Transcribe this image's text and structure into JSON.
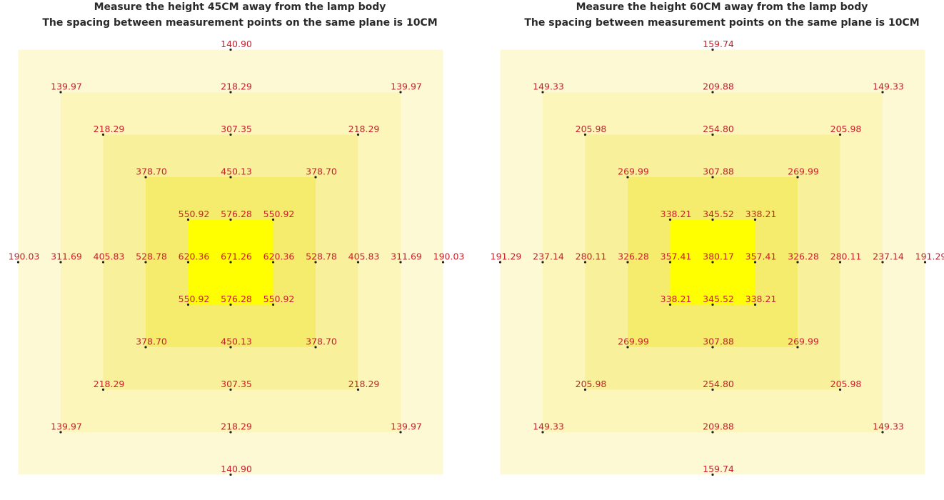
{
  "panels": [
    {
      "title": [
        "Measure the height 45CM away from the lamp body",
        "The spacing between measurement points on the same plane is 10CM"
      ],
      "points": [
        "190.03",
        "311.69",
        "405.83",
        "528.78",
        "620.36",
        "671.26",
        "620.36",
        "528.78",
        "405.83",
        "311.69",
        "190.03",
        "140.90",
        "218.29",
        "307.35",
        "450.13",
        "576.28",
        "576.28",
        "450.13",
        "307.35",
        "218.29",
        "140.90",
        "139.97",
        "139.97",
        "139.97",
        "139.97",
        "218.29",
        "218.29",
        "218.29",
        "218.29",
        "378.70",
        "378.70",
        "378.70",
        "378.70",
        "550.92",
        "550.92",
        "550.92",
        "550.92"
      ]
    },
    {
      "title": [
        "Measure the height 60CM away from the lamp body",
        "The spacing between measurement points on the same plane is 10CM"
      ],
      "points": [
        "191.29",
        "237.14",
        "280.11",
        "326.28",
        "357.41",
        "380.17",
        "357.41",
        "326.28",
        "280.11",
        "237.14",
        "191.29",
        "159.74",
        "209.88",
        "254.80",
        "307.88",
        "345.52",
        "345.52",
        "307.88",
        "254.80",
        "209.88",
        "159.74",
        "149.33",
        "149.33",
        "149.33",
        "149.33",
        "205.98",
        "205.98",
        "205.98",
        "205.98",
        "269.99",
        "269.99",
        "269.99",
        "269.99",
        "338.21",
        "338.21",
        "338.21",
        "338.21"
      ]
    }
  ]
}
